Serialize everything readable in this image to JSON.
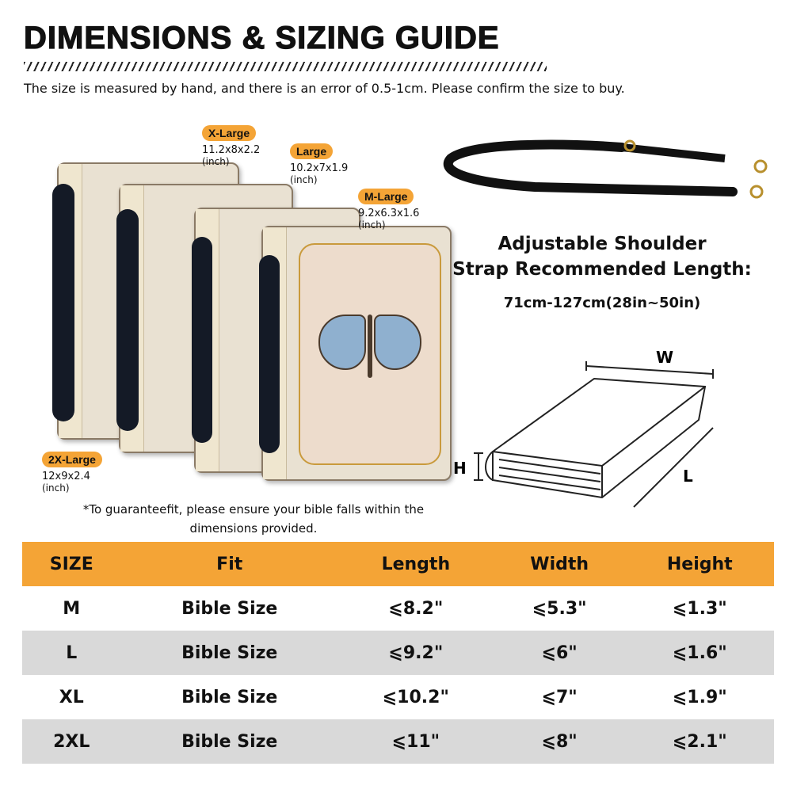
{
  "title": "DIMENSIONS & SIZING GUIDE",
  "subtitle": "The size is measured by hand, and there is an error of 0.5-1cm. Please confirm the size to buy.",
  "sizes": [
    {
      "label": "X-Large",
      "dims": "11.2x8x2.2",
      "unit": "(inch)"
    },
    {
      "label": "Large",
      "dims": "10.2x7x1.9",
      "unit": "(inch)"
    },
    {
      "label": "M-Large",
      "dims": "9.2x6.3x1.6",
      "unit": "(inch)"
    },
    {
      "label": "2X-Large",
      "dims": "12x9x2.4",
      "unit": "(inch)"
    }
  ],
  "strap": {
    "title_line1": "Adjustable Shoulder",
    "title_line2": "Strap Recommended Length:",
    "length": "71cm-127cm(28in~50in)"
  },
  "diagram": {
    "w": "W",
    "h": "H",
    "l": "L"
  },
  "note": "*To guaranteefit, please ensure your bible falls within the dimensions provided.",
  "table": {
    "headers": [
      "SIZE",
      "Fit",
      "Length",
      "Width",
      "Height"
    ],
    "rows": [
      [
        "M",
        "Bible Size",
        "⩽8.2\"",
        "⩽5.3\"",
        "⩽1.3\""
      ],
      [
        "L",
        "Bible Size",
        "⩽9.2\"",
        "⩽6\"",
        "⩽1.6\""
      ],
      [
        "XL",
        "Bible Size",
        "⩽10.2\"",
        "⩽7\"",
        "⩽1.9\""
      ],
      [
        "2XL",
        "Bible Size",
        "⩽11\"",
        "⩽8\"",
        "⩽2.1\""
      ]
    ]
  },
  "colors": {
    "accent": "#f4a436",
    "row_alt": "#d9d9d9"
  }
}
